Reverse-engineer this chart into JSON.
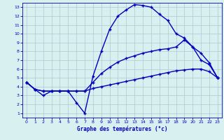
{
  "xlabel": "Graphe des températures (°c)",
  "xlim": [
    -0.5,
    23.5
  ],
  "ylim": [
    0.5,
    13.5
  ],
  "xticks": [
    0,
    1,
    2,
    3,
    4,
    5,
    6,
    7,
    8,
    9,
    10,
    11,
    12,
    13,
    14,
    15,
    16,
    17,
    18,
    19,
    20,
    21,
    22,
    23
  ],
  "yticks": [
    1,
    2,
    3,
    4,
    5,
    6,
    7,
    8,
    9,
    10,
    11,
    12,
    13
  ],
  "background_color": "#d9f0f0",
  "line_color": "#0000bb",
  "grid_color": "#b0c8d0",
  "curve1_x": [
    0,
    1,
    2,
    3,
    4,
    5,
    6,
    7,
    8,
    9,
    10,
    11,
    12,
    13,
    14,
    15,
    16,
    17,
    18,
    19,
    20,
    21,
    22,
    23
  ],
  "curve1_y": [
    4.5,
    3.7,
    3.0,
    3.5,
    3.5,
    3.5,
    2.2,
    1.0,
    5.2,
    8.0,
    10.5,
    12.0,
    12.7,
    13.3,
    13.2,
    13.0,
    12.2,
    11.5,
    10.0,
    9.5,
    8.5,
    7.0,
    6.5,
    5.0
  ],
  "curve2_x": [
    0,
    1,
    2,
    3,
    4,
    5,
    6,
    7,
    8,
    9,
    10,
    11,
    12,
    13,
    14,
    15,
    16,
    17,
    18,
    19,
    20,
    21,
    22,
    23
  ],
  "curve2_y": [
    4.5,
    3.7,
    3.5,
    3.5,
    3.5,
    3.5,
    3.5,
    3.5,
    4.5,
    5.5,
    6.2,
    6.8,
    7.2,
    7.5,
    7.8,
    8.0,
    8.2,
    8.3,
    8.5,
    9.3,
    8.5,
    7.8,
    6.7,
    5.0
  ],
  "curve3_x": [
    0,
    1,
    2,
    3,
    4,
    5,
    6,
    7,
    8,
    9,
    10,
    11,
    12,
    13,
    14,
    15,
    16,
    17,
    18,
    19,
    20,
    21,
    22,
    23
  ],
  "curve3_y": [
    4.5,
    3.7,
    3.5,
    3.5,
    3.5,
    3.5,
    3.5,
    3.5,
    3.8,
    4.0,
    4.2,
    4.4,
    4.6,
    4.8,
    5.0,
    5.2,
    5.4,
    5.6,
    5.8,
    5.9,
    6.0,
    6.0,
    5.7,
    5.0
  ]
}
